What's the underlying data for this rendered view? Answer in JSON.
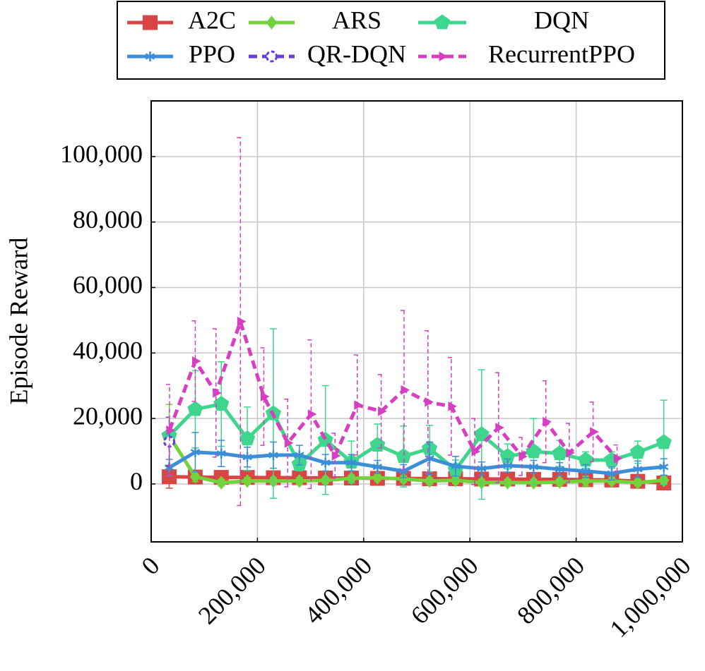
{
  "chart_data": {
    "type": "line",
    "y_label": "Episode Reward",
    "x": [
      34000,
      83000,
      132000,
      181000,
      230000,
      279000,
      328000,
      377000,
      426000,
      475000,
      524000,
      573000,
      622000,
      671000,
      720000,
      769000,
      818000,
      867000,
      916000,
      965000
    ],
    "xlim": [
      0,
      1000000
    ],
    "ylim": [
      -17700,
      117000
    ],
    "xticks": [
      0,
      {
        "value": 200000,
        "label": "200,000"
      },
      {
        "value": 400000,
        "label": "400,000"
      },
      {
        "value": 600000,
        "label": "600,000"
      },
      {
        "value": 800000,
        "label": "800,000"
      },
      {
        "value": 1000000,
        "label": "1,000,000"
      }
    ],
    "yticks": [
      0,
      {
        "value": 20000,
        "label": "20,000"
      },
      {
        "value": 40000,
        "label": "40,000"
      },
      {
        "value": 60000,
        "label": "60,000"
      },
      {
        "value": 80000,
        "label": "80,000"
      },
      {
        "value": 100000,
        "label": "100,000"
      }
    ],
    "grid": true,
    "legend": "top",
    "series": [
      {
        "name": "A2C",
        "color": "#d94444",
        "marker": "square",
        "dashed": false,
        "values": [
          2200,
          2100,
          2000,
          2000,
          1900,
          1900,
          1800,
          1800,
          1700,
          1700,
          1600,
          1600,
          1500,
          1500,
          1400,
          1400,
          1300,
          1200,
          800,
          300
        ],
        "errors": [
          3500,
          500,
          500,
          500,
          500,
          500,
          500,
          500,
          500,
          500,
          500,
          500,
          500,
          500,
          500,
          500,
          500,
          500,
          500,
          500
        ]
      },
      {
        "name": "ARS",
        "color": "#72d33d",
        "marker": "diamond",
        "dashed": false,
        "values": [
          14700,
          2200,
          400,
          900,
          900,
          900,
          1100,
          1700,
          1900,
          1500,
          900,
          1100,
          400,
          400,
          400,
          600,
          900,
          900,
          400,
          1100
        ],
        "errors": [
          9600,
          1500,
          1000,
          1000,
          1000,
          1000,
          1000,
          1000,
          1000,
          1000,
          1000,
          1000,
          1000,
          1000,
          1000,
          1000,
          1500,
          1000,
          1000,
          1000
        ]
      },
      {
        "name": "DQN",
        "color": "#3dd68c",
        "marker": "pentagon",
        "dashed": false,
        "values": [
          14700,
          22800,
          24400,
          13800,
          21500,
          6000,
          13400,
          6700,
          11900,
          8400,
          10800,
          4300,
          15100,
          8400,
          9900,
          9300,
          7300,
          7300,
          9700,
          12700
        ],
        "errors": [
          2500,
          11800,
          12900,
          9700,
          25900,
          2000,
          16600,
          6400,
          6400,
          9300,
          7100,
          3000,
          19800,
          3800,
          10100,
          4000,
          2500,
          2500,
          3400,
          12900
        ]
      },
      {
        "name": "PPO",
        "color": "#3a8fd8",
        "marker": "star",
        "dashed": false,
        "values": [
          5000,
          9700,
          9300,
          8200,
          8800,
          8800,
          6500,
          6500,
          5200,
          3900,
          7800,
          5400,
          4700,
          5600,
          5200,
          4500,
          3900,
          3200,
          4500,
          5200
        ],
        "errors": [
          2500,
          6000,
          4000,
          3000,
          4000,
          3000,
          2500,
          2500,
          2000,
          2000,
          5000,
          3000,
          2000,
          2000,
          2000,
          2000,
          2000,
          2000,
          2500,
          2500
        ]
      },
      {
        "name": "QR-DQN",
        "color": "#6a3fd6",
        "marker": "circle",
        "dashed": true,
        "values": [
          12900,
          null,
          null,
          null,
          null,
          null,
          null,
          null,
          null,
          null,
          null,
          null,
          null,
          null,
          null,
          null,
          null,
          null,
          null,
          null
        ],
        "errors": [
          7500,
          null,
          null,
          null,
          null,
          null,
          null,
          null,
          null,
          null,
          null,
          null,
          null,
          null,
          null,
          null,
          null,
          null,
          null,
          null
        ]
      },
      {
        "name": "RecurrentPPO",
        "color": "#d63fc0",
        "marker": "triangle",
        "dashed": true,
        "x": [
          34500,
          83000,
          122000,
          168000,
          212000,
          257000,
          301000,
          346000,
          388000,
          433000,
          476000,
          521000,
          565000,
          609000,
          654000,
          698000,
          743000,
          787000,
          832000,
          877000
        ],
        "values": [
          16400,
          37500,
          27800,
          49600,
          26700,
          12500,
          21300,
          8600,
          24100,
          22200,
          28700,
          25000,
          23700,
          9900,
          17200,
          8400,
          19000,
          9500,
          15900,
          7800
        ],
        "errors": [
          14000,
          12300,
          19600,
          56200,
          14900,
          13400,
          22700,
          6900,
          15300,
          11200,
          24300,
          21800,
          14900,
          10100,
          16800,
          5800,
          12500,
          9000,
          9100,
          4100
        ]
      }
    ]
  }
}
